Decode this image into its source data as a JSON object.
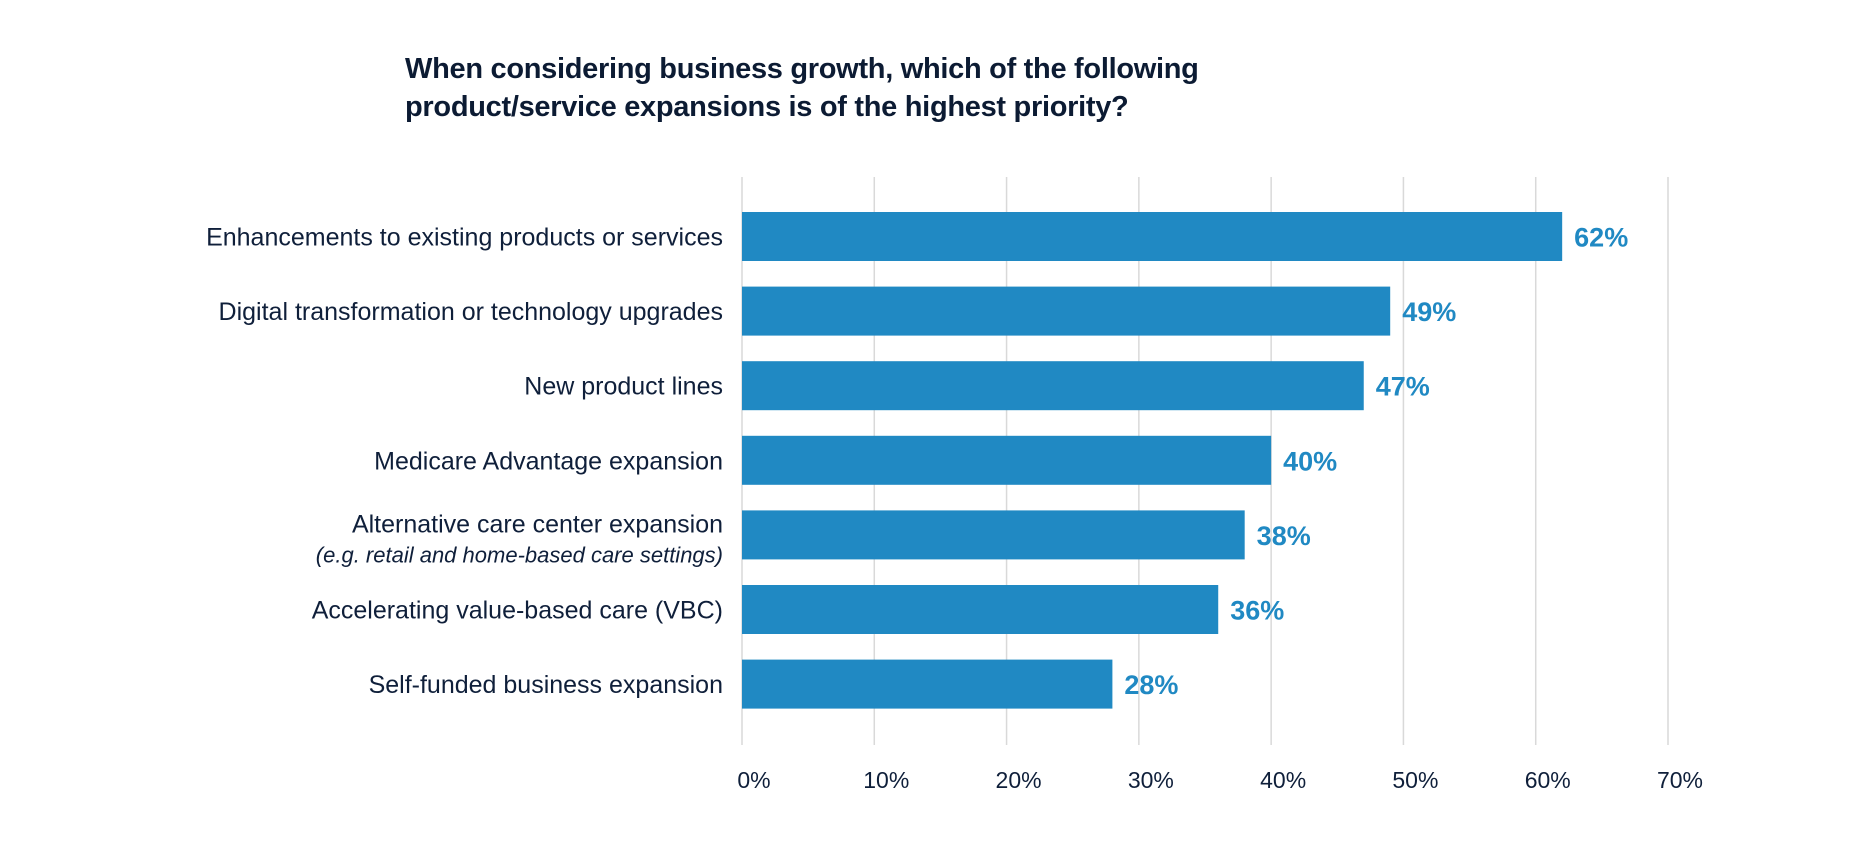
{
  "chart_data": {
    "type": "bar",
    "orientation": "horizontal",
    "title_lines": [
      "When considering business growth, which of the following",
      "product/service expansions is of the highest priority?"
    ],
    "categories": [
      {
        "label": "Enhancements to existing products or services",
        "sublabel": ""
      },
      {
        "label": "Digital transformation or technology upgrades",
        "sublabel": ""
      },
      {
        "label": "New product lines",
        "sublabel": ""
      },
      {
        "label": "Medicare Advantage expansion",
        "sublabel": ""
      },
      {
        "label": "Alternative care center expansion",
        "sublabel": "(e.g. retail and home-based care settings)"
      },
      {
        "label": "Accelerating value-based care (VBC)",
        "sublabel": ""
      },
      {
        "label": "Self-funded business expansion",
        "sublabel": ""
      }
    ],
    "values": [
      62,
      49,
      47,
      40,
      38,
      36,
      28
    ],
    "data_labels": [
      "62%",
      "49%",
      "47%",
      "40%",
      "38%",
      "36%",
      "28%"
    ],
    "xlim": [
      0,
      70
    ],
    "x_ticks": [
      0,
      10,
      20,
      30,
      40,
      50,
      60,
      70
    ],
    "x_tick_labels": [
      "0%",
      "10%",
      "20%",
      "30%",
      "40%",
      "50%",
      "60%",
      "70%"
    ],
    "grid": "vertical",
    "xlabel": "",
    "ylabel": "",
    "colors": {
      "bar": "#2089c3",
      "value_label": "#2089c3",
      "text": "#0f1f3a",
      "grid": "#d9d9d9"
    }
  }
}
